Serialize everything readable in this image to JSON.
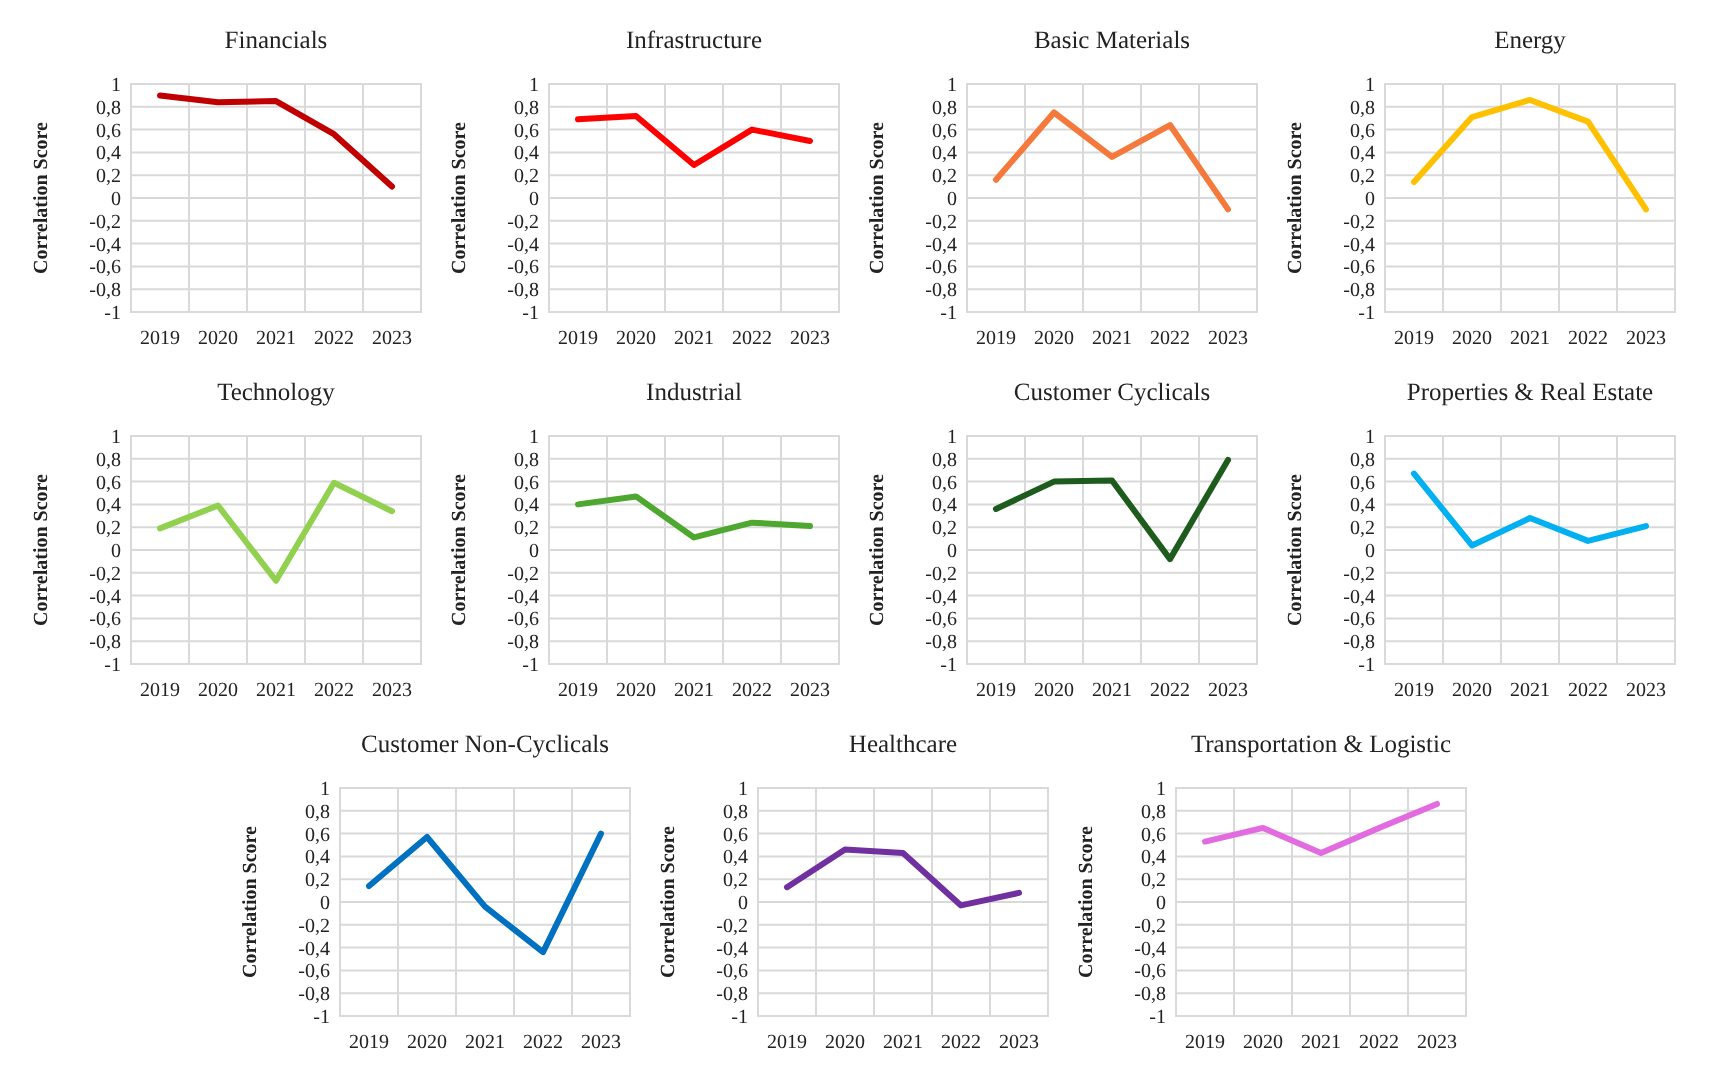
{
  "chart_data": [
    {
      "type": "line",
      "title": "Financials",
      "ylabel": "Correlation Score",
      "categories": [
        "2019",
        "2020",
        "2021",
        "2022",
        "2023"
      ],
      "series": [
        {
          "color": "#c00000",
          "values": [
            0.9,
            0.84,
            0.85,
            0.56,
            0.1
          ]
        }
      ],
      "ylim": [
        -1,
        1
      ],
      "yticks": [
        -1,
        {
          "value": -0.8,
          "label": "-0,8"
        },
        {
          "value": -0.6,
          "label": "-0,6"
        },
        {
          "value": -0.4,
          "label": "-0,4"
        },
        {
          "value": -0.2,
          "label": "-0,2"
        },
        0,
        {
          "value": 0.2,
          "label": "0,2"
        },
        {
          "value": 0.4,
          "label": "0,4"
        },
        {
          "value": 0.6,
          "label": "0,6"
        },
        {
          "value": 0.8,
          "label": "0,8"
        },
        1
      ],
      "grid": true
    },
    {
      "type": "line",
      "title": "Infrastructure",
      "ylabel": "Correlation Score",
      "categories": [
        "2019",
        "2020",
        "2021",
        "2022",
        "2023"
      ],
      "series": [
        {
          "color": "#ff0000",
          "values": [
            0.69,
            0.72,
            0.29,
            0.6,
            0.5
          ]
        }
      ],
      "ylim": [
        -1,
        1
      ],
      "yticks": [
        -1,
        {
          "value": -0.8,
          "label": "-0,8"
        },
        {
          "value": -0.6,
          "label": "-0,6"
        },
        {
          "value": -0.4,
          "label": "-0,4"
        },
        {
          "value": -0.2,
          "label": "-0,2"
        },
        0,
        {
          "value": 0.2,
          "label": "0,2"
        },
        {
          "value": 0.4,
          "label": "0,4"
        },
        {
          "value": 0.6,
          "label": "0,6"
        },
        {
          "value": 0.8,
          "label": "0,8"
        },
        1
      ],
      "grid": true
    },
    {
      "type": "line",
      "title": "Basic Materials",
      "ylabel": "Correlation Score",
      "categories": [
        "2019",
        "2020",
        "2021",
        "2022",
        "2023"
      ],
      "series": [
        {
          "color": "#f4793b",
          "values": [
            0.16,
            0.75,
            0.36,
            0.64,
            -0.1
          ]
        }
      ],
      "ylim": [
        -1,
        1
      ],
      "yticks": [
        -1,
        {
          "value": -0.8,
          "label": "-0,8"
        },
        {
          "value": -0.6,
          "label": "-0,6"
        },
        {
          "value": -0.4,
          "label": "-0,4"
        },
        {
          "value": -0.2,
          "label": "-0,2"
        },
        0,
        {
          "value": 0.2,
          "label": "0,2"
        },
        {
          "value": 0.4,
          "label": "0,4"
        },
        {
          "value": 0.6,
          "label": "0,6"
        },
        {
          "value": 0.8,
          "label": "0,8"
        },
        1
      ],
      "grid": true
    },
    {
      "type": "line",
      "title": "Energy",
      "ylabel": "Correlation Score",
      "categories": [
        "2019",
        "2020",
        "2021",
        "2022",
        "2023"
      ],
      "series": [
        {
          "color": "#ffc000",
          "values": [
            0.14,
            0.71,
            0.86,
            0.67,
            -0.1
          ]
        }
      ],
      "ylim": [
        -1,
        1
      ],
      "yticks": [
        -1,
        {
          "value": -0.8,
          "label": "-0,8"
        },
        {
          "value": -0.6,
          "label": "-0,6"
        },
        {
          "value": -0.4,
          "label": "-0,4"
        },
        {
          "value": -0.2,
          "label": "-0,2"
        },
        0,
        {
          "value": 0.2,
          "label": "0,2"
        },
        {
          "value": 0.4,
          "label": "0,4"
        },
        {
          "value": 0.6,
          "label": "0,6"
        },
        {
          "value": 0.8,
          "label": "0,8"
        },
        1
      ],
      "grid": true
    },
    {
      "type": "line",
      "title": "Technology",
      "ylabel": "Correlation Score",
      "categories": [
        "2019",
        "2020",
        "2021",
        "2022",
        "2023"
      ],
      "series": [
        {
          "color": "#92d050",
          "values": [
            0.19,
            0.39,
            -0.27,
            0.59,
            0.34
          ]
        }
      ],
      "ylim": [
        -1,
        1
      ],
      "yticks": [
        -1,
        {
          "value": -0.8,
          "label": "-0,8"
        },
        {
          "value": -0.6,
          "label": "-0,6"
        },
        {
          "value": -0.4,
          "label": "-0,4"
        },
        {
          "value": -0.2,
          "label": "-0,2"
        },
        0,
        {
          "value": 0.2,
          "label": "0,2"
        },
        {
          "value": 0.4,
          "label": "0,4"
        },
        {
          "value": 0.6,
          "label": "0,6"
        },
        {
          "value": 0.8,
          "label": "0,8"
        },
        1
      ],
      "grid": true
    },
    {
      "type": "line",
      "title": "Industrial",
      "ylabel": "Correlation Score",
      "categories": [
        "2019",
        "2020",
        "2021",
        "2022",
        "2023"
      ],
      "series": [
        {
          "color": "#4ea72e",
          "values": [
            0.4,
            0.47,
            0.11,
            0.24,
            0.21
          ]
        }
      ],
      "ylim": [
        -1,
        1
      ],
      "yticks": [
        -1,
        {
          "value": -0.8,
          "label": "-0,8"
        },
        {
          "value": -0.6,
          "label": "-0,6"
        },
        {
          "value": -0.4,
          "label": "-0,4"
        },
        {
          "value": -0.2,
          "label": "-0,2"
        },
        0,
        {
          "value": 0.2,
          "label": "0,2"
        },
        {
          "value": 0.4,
          "label": "0,4"
        },
        {
          "value": 0.6,
          "label": "0,6"
        },
        {
          "value": 0.8,
          "label": "0,8"
        },
        1
      ],
      "grid": true
    },
    {
      "type": "line",
      "title": "Customer Cyclicals",
      "ylabel": "Correlation Score",
      "categories": [
        "2019",
        "2020",
        "2021",
        "2022",
        "2023"
      ],
      "series": [
        {
          "color": "#1e5c1e",
          "values": [
            0.36,
            0.6,
            0.61,
            -0.08,
            0.79
          ]
        }
      ],
      "ylim": [
        -1,
        1
      ],
      "yticks": [
        -1,
        {
          "value": -0.8,
          "label": "-0,8"
        },
        {
          "value": -0.6,
          "label": "-0,6"
        },
        {
          "value": -0.4,
          "label": "-0,4"
        },
        {
          "value": -0.2,
          "label": "-0,2"
        },
        0,
        {
          "value": 0.2,
          "label": "0,2"
        },
        {
          "value": 0.4,
          "label": "0,4"
        },
        {
          "value": 0.6,
          "label": "0,6"
        },
        {
          "value": 0.8,
          "label": "0,8"
        },
        1
      ],
      "grid": true
    },
    {
      "type": "line",
      "title": "Properties & Real Estate",
      "ylabel": "Correlation Score",
      "categories": [
        "2019",
        "2020",
        "2021",
        "2022",
        "2023"
      ],
      "series": [
        {
          "color": "#00b0f0",
          "values": [
            0.67,
            0.04,
            0.28,
            0.08,
            0.21
          ]
        }
      ],
      "ylim": [
        -1,
        1
      ],
      "yticks": [
        -1,
        {
          "value": -0.8,
          "label": "-0,8"
        },
        {
          "value": -0.6,
          "label": "-0,6"
        },
        {
          "value": -0.4,
          "label": "-0,4"
        },
        {
          "value": -0.2,
          "label": "-0,2"
        },
        0,
        {
          "value": 0.2,
          "label": "0,2"
        },
        {
          "value": 0.4,
          "label": "0,4"
        },
        {
          "value": 0.6,
          "label": "0,6"
        },
        {
          "value": 0.8,
          "label": "0,8"
        },
        1
      ],
      "grid": true
    },
    {
      "type": "line",
      "title": "Customer Non-Cyclicals",
      "ylabel": "Correlation Score",
      "categories": [
        "2019",
        "2020",
        "2021",
        "2022",
        "2023"
      ],
      "series": [
        {
          "color": "#0070c0",
          "values": [
            0.14,
            0.57,
            -0.04,
            -0.44,
            0.6
          ]
        }
      ],
      "ylim": [
        -1,
        1
      ],
      "yticks": [
        -1,
        {
          "value": -0.8,
          "label": "-0,8"
        },
        {
          "value": -0.6,
          "label": "-0,6"
        },
        {
          "value": -0.4,
          "label": "-0,4"
        },
        {
          "value": -0.2,
          "label": "-0,2"
        },
        0,
        {
          "value": 0.2,
          "label": "0,2"
        },
        {
          "value": 0.4,
          "label": "0,4"
        },
        {
          "value": 0.6,
          "label": "0,6"
        },
        {
          "value": 0.8,
          "label": "0,8"
        },
        1
      ],
      "grid": true
    },
    {
      "type": "line",
      "title": "Healthcare",
      "ylabel": "Correlation Score",
      "categories": [
        "2019",
        "2020",
        "2021",
        "2022",
        "2023"
      ],
      "series": [
        {
          "color": "#7030a0",
          "values": [
            0.13,
            0.46,
            0.43,
            -0.03,
            0.08
          ]
        }
      ],
      "ylim": [
        -1,
        1
      ],
      "yticks": [
        -1,
        {
          "value": -0.8,
          "label": "-0,8"
        },
        {
          "value": -0.6,
          "label": "-0,6"
        },
        {
          "value": -0.4,
          "label": "-0,4"
        },
        {
          "value": -0.2,
          "label": "-0,2"
        },
        0,
        {
          "value": 0.2,
          "label": "0,2"
        },
        {
          "value": 0.4,
          "label": "0,4"
        },
        {
          "value": 0.6,
          "label": "0,6"
        },
        {
          "value": 0.8,
          "label": "0,8"
        },
        1
      ],
      "grid": true
    },
    {
      "type": "line",
      "title": "Transportation & Logistic",
      "ylabel": "Correlation Score",
      "categories": [
        "2019",
        "2020",
        "2021",
        "2022",
        "2023"
      ],
      "series": [
        {
          "color": "#e26be0",
          "values": [
            0.53,
            0.65,
            0.43,
            0.65,
            0.86
          ]
        }
      ],
      "ylim": [
        -1,
        1
      ],
      "yticks": [
        -1,
        {
          "value": -0.8,
          "label": "-0,8"
        },
        {
          "value": -0.6,
          "label": "-0,6"
        },
        {
          "value": -0.4,
          "label": "-0,4"
        },
        {
          "value": -0.2,
          "label": "-0,2"
        },
        0,
        {
          "value": 0.2,
          "label": "0,2"
        },
        {
          "value": 0.4,
          "label": "0,4"
        },
        {
          "value": 0.6,
          "label": "0,6"
        },
        {
          "value": 0.8,
          "label": "0,8"
        },
        1
      ],
      "grid": true
    }
  ]
}
